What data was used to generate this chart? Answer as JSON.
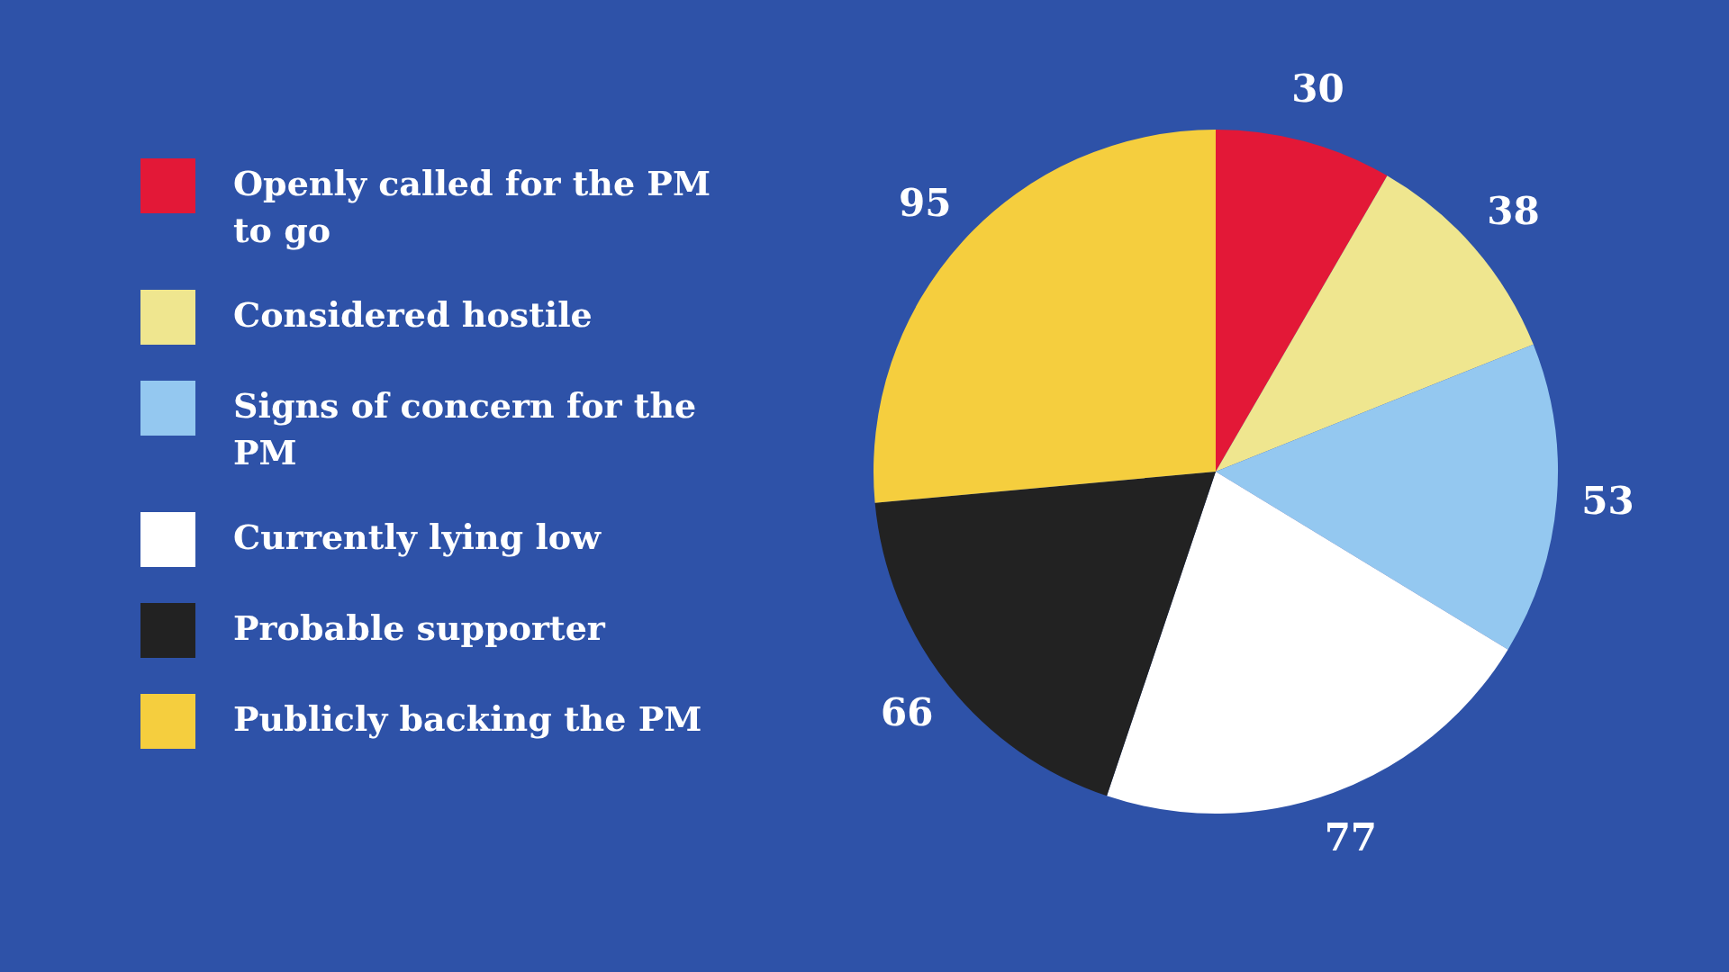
{
  "chart_data": {
    "type": "pie",
    "categories": [
      "Openly called for the PM to go",
      "Considered hostile",
      "Signs of concern for the PM",
      "Currently lying low",
      "Probable supporter",
      "Publicly backing the PM"
    ],
    "values": [
      30,
      38,
      53,
      77,
      66,
      95
    ],
    "colors": [
      "#e31837",
      "#efe68f",
      "#94c8f0",
      "#ffffff",
      "#222222",
      "#f5ce3e"
    ],
    "data_labels": true,
    "legend": "left"
  }
}
